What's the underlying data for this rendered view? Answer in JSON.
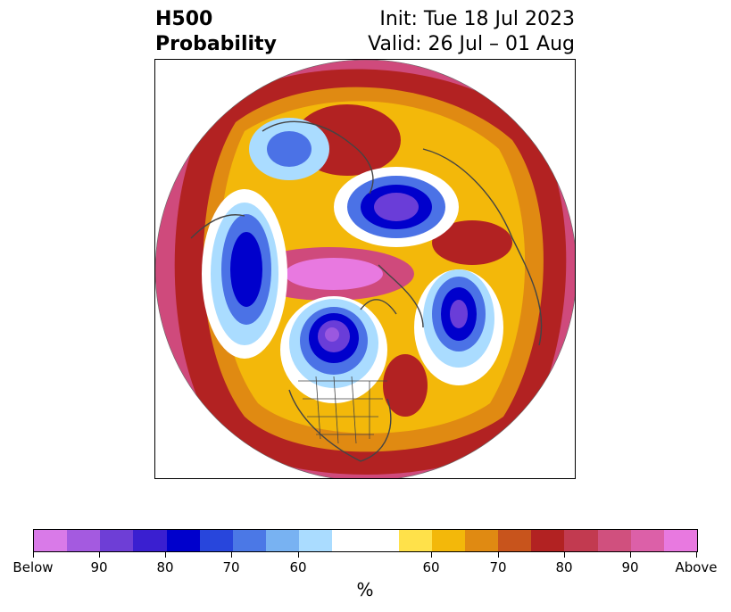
{
  "header": {
    "title_line1": "H500",
    "title_line2": "Probability",
    "init": "Init: Tue 18 Jul 2023",
    "valid": "Valid: 26 Jul – 01 Aug"
  },
  "map": {
    "projection": "north-polar-stereographic",
    "features": [
      "coastlines",
      "country-borders",
      "us-state-borders"
    ],
    "colors": {
      "above_max": "#e879e0",
      "above_90": "#d8589f",
      "above_80": "#b22222",
      "above_70": "#e08a12",
      "above_60": "#ffe14a",
      "neutral": "#ffffff",
      "below_60": "#aadcff",
      "below_70": "#4b72e6",
      "below_80": "#0000cc",
      "below_90": "#6a3dd8",
      "below_max": "#9a58e0"
    }
  },
  "colorbar": {
    "colors": [
      "#d97ae8",
      "#a45ae0",
      "#6e3ed6",
      "#3a1fd0",
      "#0000cc",
      "#2846dc",
      "#4b78e6",
      "#78b2f2",
      "#aadcff",
      "#ffffff",
      "#ffe14a",
      "#f3b80a",
      "#e08a12",
      "#c8541c",
      "#b22222",
      "#c23a50",
      "#d0507e",
      "#dc60a8",
      "#e879e0"
    ],
    "tick_labels": [
      "Below",
      "90",
      "80",
      "70",
      "60",
      "60",
      "70",
      "80",
      "90",
      "Above"
    ],
    "unit": "%"
  }
}
